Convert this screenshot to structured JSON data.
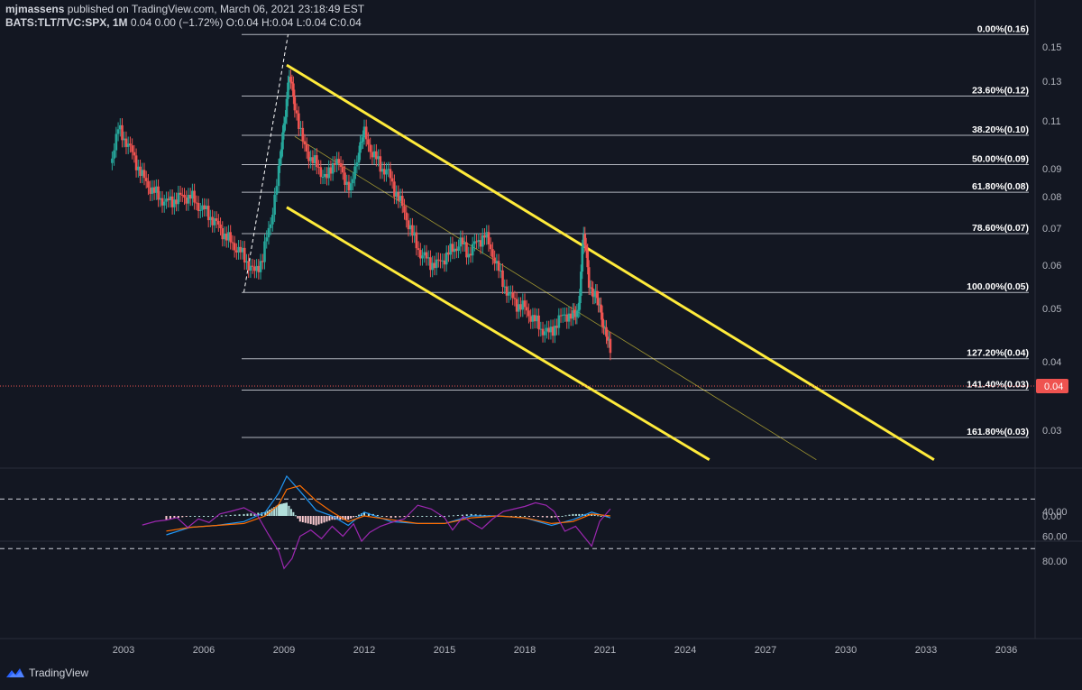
{
  "header": {
    "author": "mjmassens",
    "published": "published on TradingView.com, March 06, 2021 23:18:49 EST",
    "symbol": "BATS:TLT/TVC:SPX, 1M",
    "ohlc": "0.04 0.00 (−1.72%) O:0.04 H:0.04 L:0.04 C:0.04"
  },
  "brand": {
    "name": "TradingView",
    "icon": "tradingview-logo-icon"
  },
  "colors": {
    "background": "#131722",
    "up": "#26a69a",
    "down": "#ef5350",
    "channel": "#ffeb3b",
    "fib_line": "#b2b5be",
    "rsi_line": "#9c27b0",
    "rsi_band": "#2a1a3d",
    "macd_line": "#2196f3",
    "signal_line": "#ff6d00",
    "last_price": "#ef5350"
  },
  "chart_data": [
    {
      "type": "line",
      "title": "BATS:TLT/TVC:SPX, 1M",
      "scale": "log",
      "x_ticks": [
        "2003",
        "2006",
        "2009",
        "2012",
        "2015",
        "2018",
        "2021",
        "2024",
        "2027",
        "2030",
        "2033",
        "2036"
      ],
      "y_ticks": [
        "0.15",
        "0.13",
        "0.11",
        "0.09",
        "0.08",
        "0.07",
        "0.06",
        "0.05",
        "0.04",
        "0.03"
      ],
      "last_price": "0.04",
      "price_series": {
        "x": [
          2002.5,
          2002.8,
          2003.1,
          2003.4,
          2003.7,
          2004.0,
          2004.3,
          2004.6,
          2004.9,
          2005.2,
          2005.5,
          2005.8,
          2006.1,
          2006.4,
          2006.7,
          2007.0,
          2007.3,
          2007.6,
          2007.9,
          2008.2,
          2008.5,
          2008.8,
          2009.0,
          2009.2,
          2009.4,
          2009.7,
          2010.0,
          2010.3,
          2010.6,
          2010.9,
          2011.2,
          2011.5,
          2011.8,
          2012.0,
          2012.3,
          2012.6,
          2012.9,
          2013.2,
          2013.5,
          2013.8,
          2014.1,
          2014.4,
          2014.7,
          2015.0,
          2015.3,
          2015.6,
          2015.9,
          2016.2,
          2016.5,
          2016.8,
          2017.1,
          2017.4,
          2017.7,
          2018.0,
          2018.3,
          2018.6,
          2018.9,
          2019.2,
          2019.5,
          2019.8,
          2020.0,
          2020.2,
          2020.4,
          2020.6,
          2020.8,
          2021.0,
          2021.2
        ],
        "y": [
          0.092,
          0.106,
          0.101,
          0.094,
          0.087,
          0.083,
          0.08,
          0.078,
          0.079,
          0.08,
          0.08,
          0.077,
          0.075,
          0.072,
          0.069,
          0.066,
          0.064,
          0.061,
          0.058,
          0.062,
          0.072,
          0.088,
          0.11,
          0.132,
          0.118,
          0.1,
          0.094,
          0.09,
          0.086,
          0.094,
          0.088,
          0.082,
          0.098,
          0.104,
          0.096,
          0.091,
          0.088,
          0.081,
          0.075,
          0.068,
          0.063,
          0.061,
          0.06,
          0.062,
          0.064,
          0.066,
          0.063,
          0.066,
          0.068,
          0.063,
          0.057,
          0.053,
          0.051,
          0.05,
          0.048,
          0.046,
          0.045,
          0.047,
          0.049,
          0.048,
          0.05,
          0.068,
          0.056,
          0.053,
          0.05,
          0.046,
          0.0415
        ]
      },
      "fibonacci": [
        {
          "label": "0.00%(0.16)",
          "value": 0.158
        },
        {
          "label": "23.60%(0.12)",
          "value": 0.122
        },
        {
          "label": "38.20%(0.10)",
          "value": 0.1035
        },
        {
          "label": "50.00%(0.09)",
          "value": 0.0915
        },
        {
          "label": "61.80%(0.08)",
          "value": 0.0815
        },
        {
          "label": "78.60%(0.07)",
          "value": 0.0685
        },
        {
          "label": "100.00%(0.05)",
          "value": 0.0535
        },
        {
          "label": "127.20%(0.04)",
          "value": 0.0405
        },
        {
          "label": "141.40%(0.03)",
          "value": 0.0355
        },
        {
          "label": "161.80%(0.03)",
          "value": 0.0291
        }
      ],
      "channel": {
        "upper": {
          "x": [
            2009.1,
            2033.3
          ],
          "y": [
            0.139,
            0.0265
          ]
        },
        "lower": {
          "x": [
            2009.1,
            2024.9
          ],
          "y": [
            0.0765,
            0.0265
          ]
        },
        "middle": {
          "x": [
            2009.4,
            2028.9
          ],
          "y": [
            0.103,
            0.0265
          ]
        }
      }
    },
    {
      "type": "line",
      "title": "",
      "y_ticks": [
        "0.00"
      ],
      "series": [
        {
          "values_x": [
            2004.6,
            2005.5,
            2006.5,
            2007.5,
            2008.3,
            2008.8,
            2009.1,
            2009.6,
            2010.2,
            2010.8,
            2011.4,
            2012.0,
            2013.0,
            2014.0,
            2015.0,
            2016.0,
            2017.0,
            2018.0,
            2019.0,
            2019.8,
            2020.5,
            2021.2
          ],
          "values_y": [
            -0.01,
            -0.006,
            -0.005,
            -0.003,
            0.002,
            0.012,
            0.021,
            0.013,
            0.003,
            0.0,
            -0.005,
            0.002,
            -0.003,
            -0.004,
            -0.004,
            0.0,
            0.0,
            -0.001,
            -0.005,
            -0.002,
            0.002,
            -0.001
          ]
        },
        {
          "values_x": [
            2004.6,
            2005.5,
            2006.5,
            2007.5,
            2008.3,
            2008.8,
            2009.1,
            2009.6,
            2010.2,
            2010.8,
            2011.4,
            2012.0,
            2013.0,
            2014.0,
            2015.0,
            2016.0,
            2017.0,
            2018.0,
            2019.0,
            2019.8,
            2020.5,
            2021.2
          ],
          "values_y": [
            -0.008,
            -0.006,
            -0.005,
            -0.004,
            0.0,
            0.006,
            0.014,
            0.016,
            0.008,
            0.002,
            -0.003,
            0.0,
            -0.002,
            -0.004,
            -0.004,
            -0.001,
            0.0,
            -0.001,
            -0.004,
            -0.003,
            0.001,
            0.0
          ]
        }
      ]
    },
    {
      "type": "line",
      "title": "",
      "y_ticks": [
        "80.00",
        "60.00",
        "40.00"
      ],
      "bands": [
        70,
        30
      ],
      "series": [
        {
          "values_x": [
            2003.7,
            2004.2,
            2004.6,
            2005.0,
            2005.4,
            2005.8,
            2006.2,
            2006.6,
            2007.0,
            2007.5,
            2008.0,
            2008.4,
            2008.8,
            2009.0,
            2009.3,
            2009.6,
            2010.0,
            2010.4,
            2010.8,
            2011.2,
            2011.6,
            2011.9,
            2012.2,
            2012.6,
            2013.0,
            2013.5,
            2014.0,
            2014.5,
            2015.0,
            2015.3,
            2015.7,
            2016.0,
            2016.4,
            2016.8,
            2017.2,
            2017.6,
            2018.0,
            2018.4,
            2018.8,
            2019.1,
            2019.5,
            2019.9,
            2020.2,
            2020.5,
            2020.8,
            2021.2
          ],
          "values_y": [
            51,
            48,
            47,
            45,
            53,
            46,
            49,
            42,
            40,
            37,
            43,
            58,
            72,
            86,
            78,
            60,
            55,
            62,
            52,
            60,
            50,
            64,
            57,
            52,
            49,
            46,
            35,
            38,
            45,
            55,
            44,
            49,
            54,
            46,
            40,
            38,
            36,
            33,
            35,
            40,
            56,
            52,
            60,
            68,
            48,
            38
          ]
        }
      ]
    }
  ]
}
